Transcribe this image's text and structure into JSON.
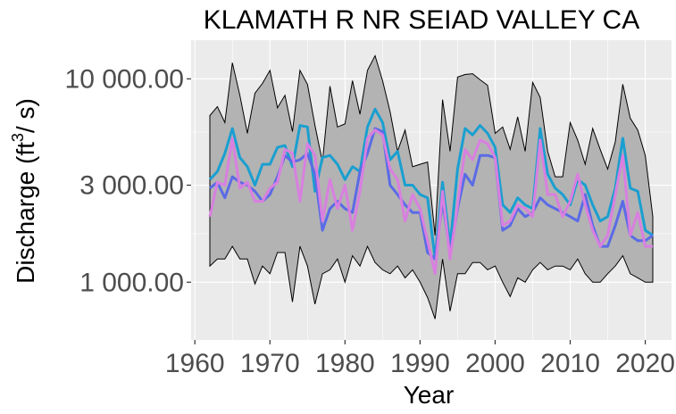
{
  "chart_data": {
    "type": "line",
    "title": "KLAMATH R NR SEIAD VALLEY CA",
    "xlabel": "Year",
    "ylabel": "Discharge (ft³/s)",
    "ylabel_main": "Discharge (ft",
    "ylabel_sup": "3",
    "ylabel_tail": "/ s)",
    "yscale": "log",
    "ylim": [
      520,
      15500
    ],
    "xlim": [
      1959.5,
      2023.5
    ],
    "grid": true,
    "yticks": [
      {
        "value": 1000,
        "label": "1 000.00"
      },
      {
        "value": 3000,
        "label": "3 000.00"
      },
      {
        "value": 10000,
        "label": "10 000.00"
      }
    ],
    "xticks": [
      1960,
      1970,
      1980,
      1990,
      2000,
      2010,
      2020
    ],
    "colors": {
      "ribbon": "#b3b3b3",
      "ribbon_edge": "#000000",
      "panel": "#ebebeb",
      "grid": "#ffffff",
      "cyan": "#1a9fd0",
      "blue": "#5b6be6",
      "pink": "#d97fe0"
    },
    "x": [
      1962,
      1963,
      1964,
      1965,
      1966,
      1967,
      1968,
      1969,
      1970,
      1971,
      1972,
      1973,
      1974,
      1975,
      1976,
      1977,
      1978,
      1979,
      1980,
      1981,
      1982,
      1983,
      1984,
      1985,
      1986,
      1987,
      1988,
      1989,
      1990,
      1991,
      1992,
      1993,
      1994,
      1995,
      1996,
      1997,
      1998,
      1999,
      2000,
      2001,
      2002,
      2003,
      2004,
      2005,
      2006,
      2007,
      2008,
      2009,
      2010,
      2011,
      2012,
      2013,
      2014,
      2015,
      2016,
      2017,
      2018,
      2019,
      2020,
      2021
    ],
    "ribbon_upper": [
      6600,
      7300,
      6100,
      12000,
      8300,
      5400,
      8500,
      9500,
      11000,
      7200,
      8300,
      5500,
      11000,
      9400,
      5900,
      3900,
      9200,
      5800,
      6000,
      9800,
      6700,
      11000,
      13000,
      9800,
      6900,
      4400,
      5600,
      3700,
      3800,
      3900,
      1700,
      7900,
      4400,
      10200,
      10500,
      10600,
      9900,
      9300,
      5400,
      5800,
      4500,
      6500,
      4400,
      9600,
      8100,
      4400,
      3300,
      3300,
      6100,
      5000,
      3800,
      5700,
      4500,
      3600,
      4900,
      9400,
      6400,
      5600,
      4200,
      2100
    ],
    "ribbon_lower": [
      1200,
      1300,
      1300,
      1500,
      1300,
      1300,
      980,
      1200,
      1100,
      1400,
      1400,
      800,
      1500,
      1200,
      780,
      1100,
      1150,
      1300,
      1000,
      1350,
      1200,
      1500,
      1250,
      1150,
      1100,
      1200,
      1050,
      1150,
      1000,
      840,
      660,
      1300,
      720,
      1100,
      1100,
      1250,
      1250,
      1150,
      1200,
      1000,
      850,
      1050,
      1000,
      1150,
      1250,
      1150,
      1200,
      1200,
      1150,
      1300,
      1100,
      1000,
      1000,
      1100,
      1200,
      1350,
      1100,
      1050,
      1000,
      1000
    ],
    "series": [
      {
        "values": [
          3200,
          3500,
          4300,
          5700,
          4100,
          3700,
          3000,
          3800,
          3800,
          4600,
          4700,
          3700,
          5900,
          5800,
          2800,
          4100,
          4200,
          3800,
          3200,
          3700,
          3500,
          5800,
          7100,
          6100,
          4000,
          4400,
          3000,
          3000,
          2700,
          2600,
          1300,
          3100,
          1500,
          3600,
          5700,
          5300,
          5900,
          5400,
          4600,
          2400,
          2200,
          2600,
          2400,
          2300,
          5700,
          3400,
          2900,
          2700,
          2400,
          3200,
          3000,
          2400,
          2000,
          2100,
          2900,
          5100,
          2900,
          2800,
          1800,
          1700
        ]
      },
      {
        "values": [
          2900,
          3100,
          2600,
          3300,
          3100,
          3000,
          2800,
          2500,
          2700,
          3300,
          4200,
          3900,
          4000,
          4300,
          3400,
          1800,
          2300,
          2500,
          2300,
          2200,
          3500,
          4300,
          5700,
          5500,
          3000,
          2700,
          2400,
          2200,
          2200,
          1400,
          1300,
          2500,
          1400,
          2300,
          3400,
          3000,
          4200,
          4200,
          4100,
          1800,
          1900,
          2300,
          2100,
          2200,
          2600,
          2400,
          2300,
          2200,
          2100,
          2000,
          2700,
          1900,
          1500,
          1500,
          1900,
          2500,
          1700,
          1600,
          1600,
          1700
        ]
      },
      {
        "values": [
          2100,
          3100,
          3000,
          5100,
          2900,
          3100,
          2500,
          2500,
          2900,
          3100,
          4500,
          4300,
          2500,
          4800,
          4200,
          2000,
          3200,
          2300,
          3000,
          1800,
          2800,
          5100,
          5600,
          5300,
          3600,
          3200,
          2000,
          2700,
          2300,
          1600,
          1100,
          2800,
          1300,
          2400,
          4500,
          4000,
          5000,
          4800,
          4100,
          1900,
          2000,
          2400,
          2300,
          2100,
          5000,
          2700,
          2700,
          2100,
          2500,
          3400,
          2400,
          1800,
          1500,
          1700,
          2700,
          4200,
          1700,
          2200,
          1500,
          1500
        ]
      }
    ]
  }
}
